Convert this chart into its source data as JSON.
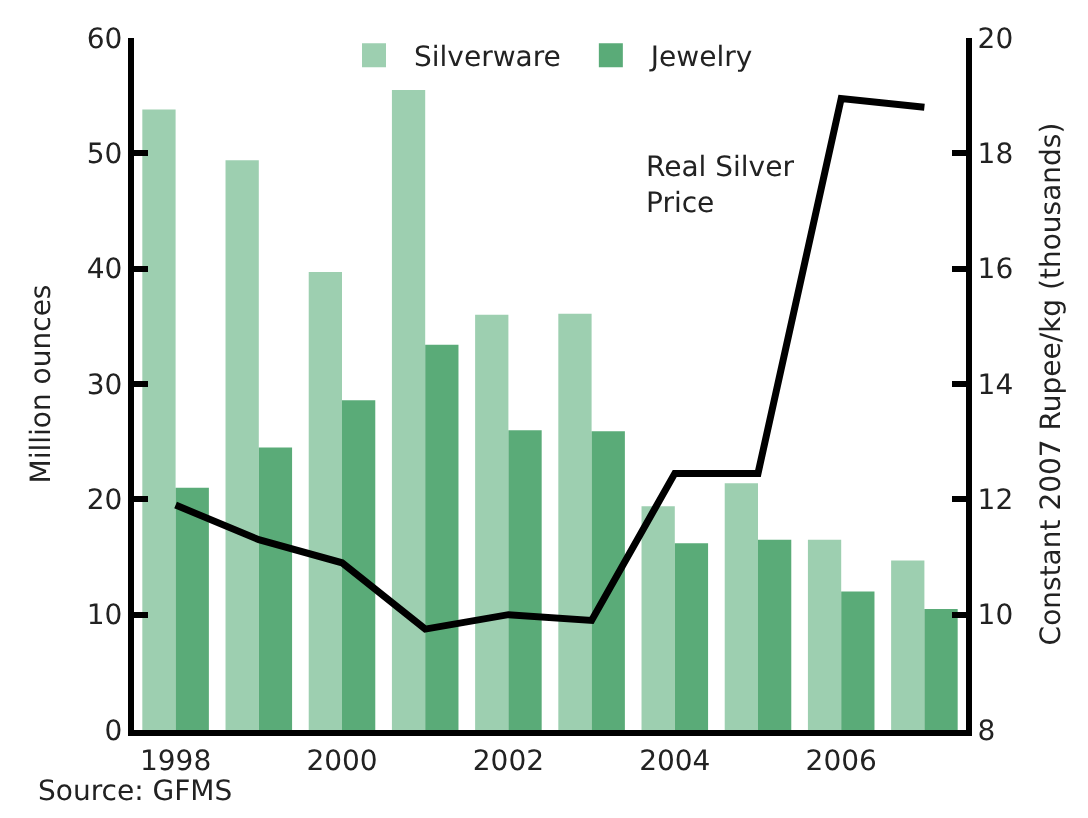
{
  "chart_data": {
    "type": "bar",
    "categories": [
      "1998",
      null,
      "2000",
      null,
      "2002",
      null,
      "2004",
      null,
      "2006",
      null
    ],
    "series": [
      {
        "name": "Silverware",
        "color": "#9dcfb0",
        "values": [
          53.8,
          49.4,
          39.7,
          55.5,
          36.0,
          36.1,
          19.4,
          21.4,
          16.5,
          14.7
        ]
      },
      {
        "name": "Jewelry",
        "color": "#5aab78",
        "values": [
          21.0,
          24.5,
          28.6,
          33.4,
          26.0,
          25.9,
          16.2,
          16.5,
          12.0,
          10.5
        ]
      },
      {
        "type": "line",
        "axis": "y2",
        "color": "#000000",
        "values": [
          11.9,
          11.3,
          10.9,
          9.75,
          10.0,
          9.9,
          12.45,
          12.45,
          18.95,
          18.8
        ]
      }
    ],
    "ylabel": "Million ounces",
    "y2label": "Constant 2007 Rupee/kg (thousands)",
    "ylim": [
      0,
      60
    ],
    "yticks": [
      0,
      10,
      20,
      30,
      40,
      50,
      60
    ],
    "y2lim": [
      8,
      20
    ],
    "y2ticks": [
      8,
      10,
      12,
      14,
      16,
      18,
      20
    ],
    "annotations": [
      "Real Silver Price",
      "Source: GFMS"
    ],
    "legend": "top",
    "marker": "none",
    "line_style": "solid"
  }
}
